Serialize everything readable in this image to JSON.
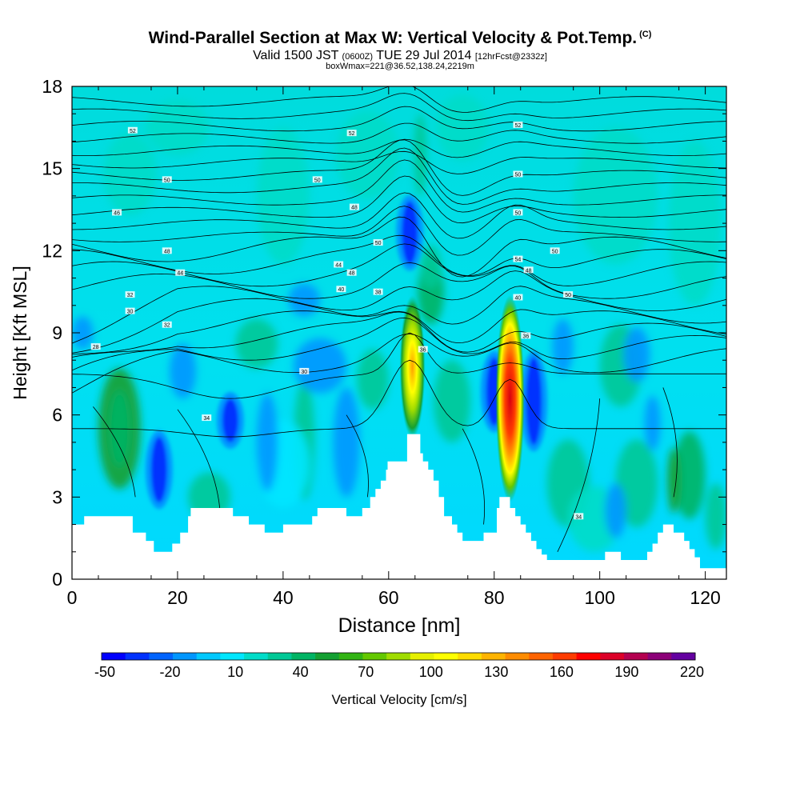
{
  "header": {
    "title": "Wind-Parallel Section at Max W: Vertical Velocity & Pot.Temp.",
    "copyright": "(C)",
    "valid_prefix": "Valid 1500 JST",
    "valid_zulu": "(0600Z)",
    "valid_date": "TUE 29 Jul 2014",
    "forecast_info": "[12hrFcst@2332z]",
    "box_wmax": "boxWmax=221@36.52,138.24,2219m"
  },
  "chart_data": {
    "type": "heatmap",
    "xlabel": "Distance [nm]",
    "ylabel": "Height [Kft MSL]",
    "xlim": [
      0,
      124
    ],
    "ylim": [
      0,
      18
    ],
    "x_ticks": [
      0,
      20,
      40,
      60,
      80,
      100,
      120
    ],
    "y_ticks": [
      0,
      3,
      6,
      9,
      12,
      15,
      18
    ],
    "colorbar": {
      "label": "Vertical Velocity [cm/s]",
      "tick_labels": [
        "-50",
        "-20",
        "10",
        "40",
        "70",
        "100",
        "130",
        "160",
        "190",
        "220"
      ],
      "colors": [
        "#0000ff",
        "#0032ff",
        "#0064ff",
        "#0096ff",
        "#00c8ff",
        "#00e6ff",
        "#00dcc8",
        "#00c896",
        "#00b464",
        "#14a032",
        "#32b414",
        "#64c800",
        "#a0dc00",
        "#e6f000",
        "#ffff00",
        "#ffdc00",
        "#ffb400",
        "#ff8c00",
        "#ff6400",
        "#ff3c00",
        "#ff0000",
        "#dc0028",
        "#b40050",
        "#8c0078",
        "#6400a0"
      ]
    },
    "max_updraft_cm_s": 221,
    "updraft_cores": [
      {
        "x": 64.5,
        "base_kft": 5.3,
        "top_kft": 10.2,
        "peak_cm_s": 100
      },
      {
        "x": 83,
        "base_kft": 3.0,
        "top_kft": 10.2,
        "peak_cm_s": 221
      }
    ],
    "downdraft_cores": [
      {
        "x": 16.5,
        "bottom_kft": 2.8,
        "top_kft": 5.2,
        "min_cm_s": -50
      },
      {
        "x": 30,
        "bottom_kft": 5.0,
        "top_kft": 6.6,
        "min_cm_s": -50
      },
      {
        "x": 80,
        "bottom_kft": 5.6,
        "top_kft": 8.1,
        "min_cm_s": -50
      },
      {
        "x": 87.5,
        "bottom_kft": 4.9,
        "top_kft": 8.1,
        "min_cm_s": -50
      },
      {
        "x": 64,
        "bottom_kft": 11.5,
        "top_kft": 13.8,
        "min_cm_s": -50
      }
    ],
    "terrain_kft": [
      [
        0,
        2.0
      ],
      [
        2.3,
        2.0
      ],
      [
        2.3,
        2.3
      ],
      [
        11.5,
        2.3
      ],
      [
        11.5,
        1.7
      ],
      [
        14,
        1.7
      ],
      [
        14,
        1.4
      ],
      [
        15.5,
        1.4
      ],
      [
        15.5,
        1.0
      ],
      [
        19,
        1.0
      ],
      [
        19,
        1.3
      ],
      [
        20.5,
        1.3
      ],
      [
        20.5,
        1.7
      ],
      [
        22,
        1.7
      ],
      [
        22,
        2.3
      ],
      [
        22.5,
        2.3
      ],
      [
        22.5,
        2.6
      ],
      [
        30.5,
        2.6
      ],
      [
        30.5,
        2.3
      ],
      [
        33.5,
        2.3
      ],
      [
        33.5,
        2.0
      ],
      [
        36.5,
        2.0
      ],
      [
        36.5,
        1.7
      ],
      [
        40,
        1.7
      ],
      [
        40,
        2.0
      ],
      [
        45.5,
        2.0
      ],
      [
        45.5,
        2.3
      ],
      [
        46.5,
        2.3
      ],
      [
        46.5,
        2.6
      ],
      [
        52,
        2.6
      ],
      [
        52,
        2.3
      ],
      [
        55,
        2.3
      ],
      [
        55,
        2.6
      ],
      [
        56.5,
        2.6
      ],
      [
        56.5,
        3.0
      ],
      [
        57.5,
        3.0
      ],
      [
        57.5,
        3.3
      ],
      [
        58.5,
        3.3
      ],
      [
        58.5,
        3.6
      ],
      [
        59.5,
        3.6
      ],
      [
        59.5,
        4.0
      ],
      [
        59.8,
        4.0
      ],
      [
        59.8,
        4.3
      ],
      [
        63.5,
        4.3
      ],
      [
        63.5,
        5.3
      ],
      [
        66,
        5.3
      ],
      [
        66,
        4.6
      ],
      [
        66.5,
        4.6
      ],
      [
        66.5,
        4.3
      ],
      [
        67.5,
        4.3
      ],
      [
        67.5,
        4.0
      ],
      [
        68.5,
        4.0
      ],
      [
        68.5,
        3.6
      ],
      [
        69.5,
        3.6
      ],
      [
        69.5,
        3.0
      ],
      [
        70.5,
        3.0
      ],
      [
        70.5,
        2.3
      ],
      [
        72,
        2.3
      ],
      [
        72,
        2.0
      ],
      [
        73,
        2.0
      ],
      [
        73,
        1.7
      ],
      [
        74,
        1.7
      ],
      [
        74,
        1.4
      ],
      [
        78,
        1.4
      ],
      [
        78,
        1.7
      ],
      [
        80.5,
        1.7
      ],
      [
        80.5,
        2.6
      ],
      [
        81,
        2.6
      ],
      [
        81,
        3.0
      ],
      [
        83,
        3.0
      ],
      [
        83,
        2.6
      ],
      [
        84,
        2.6
      ],
      [
        84,
        2.3
      ],
      [
        85,
        2.3
      ],
      [
        85,
        2.0
      ],
      [
        86,
        2.0
      ],
      [
        86,
        1.7
      ],
      [
        87,
        1.7
      ],
      [
        87,
        1.4
      ],
      [
        88,
        1.4
      ],
      [
        88,
        1.1
      ],
      [
        89,
        1.1
      ],
      [
        89,
        0.9
      ],
      [
        90,
        0.9
      ],
      [
        90,
        0.7
      ],
      [
        101,
        0.7
      ],
      [
        101,
        1.0
      ],
      [
        104,
        1.0
      ],
      [
        104,
        0.7
      ],
      [
        109,
        0.7
      ],
      [
        109,
        1.0
      ],
      [
        110,
        1.0
      ],
      [
        110,
        1.3
      ],
      [
        111,
        1.3
      ],
      [
        111,
        1.7
      ],
      [
        112,
        1.7
      ],
      [
        112,
        2.0
      ],
      [
        114,
        2.0
      ],
      [
        114,
        1.7
      ],
      [
        116,
        1.7
      ],
      [
        116,
        1.4
      ],
      [
        117,
        1.4
      ],
      [
        117,
        1.1
      ],
      [
        118,
        1.1
      ],
      [
        118,
        0.8
      ],
      [
        119,
        0.8
      ],
      [
        119,
        0.4
      ],
      [
        124,
        0.4
      ]
    ],
    "theta_contour_labels": [
      {
        "x": 4.5,
        "y": 8.5,
        "text": "28"
      },
      {
        "x": 11,
        "y": 9.8,
        "text": "30"
      },
      {
        "x": 11,
        "y": 10.4,
        "text": "32"
      },
      {
        "x": 18,
        "y": 9.3,
        "text": "32"
      },
      {
        "x": 20.5,
        "y": 11.2,
        "text": "44"
      },
      {
        "x": 18,
        "y": 12.0,
        "text": "48"
      },
      {
        "x": 8.5,
        "y": 13.4,
        "text": "46"
      },
      {
        "x": 18,
        "y": 14.6,
        "text": "50"
      },
      {
        "x": 11.5,
        "y": 16.4,
        "text": "52"
      },
      {
        "x": 44,
        "y": 7.6,
        "text": "30"
      },
      {
        "x": 25.5,
        "y": 5.9,
        "text": "34"
      },
      {
        "x": 51,
        "y": 10.6,
        "text": "40"
      },
      {
        "x": 50.5,
        "y": 11.5,
        "text": "44"
      },
      {
        "x": 53,
        "y": 11.2,
        "text": "48"
      },
      {
        "x": 58,
        "y": 10.5,
        "text": "38"
      },
      {
        "x": 58,
        "y": 12.3,
        "text": "50"
      },
      {
        "x": 53.5,
        "y": 13.6,
        "text": "48"
      },
      {
        "x": 46.5,
        "y": 14.6,
        "text": "50"
      },
      {
        "x": 53,
        "y": 16.3,
        "text": "52"
      },
      {
        "x": 66.5,
        "y": 8.4,
        "text": "36"
      },
      {
        "x": 84.5,
        "y": 10.3,
        "text": "40"
      },
      {
        "x": 86,
        "y": 8.9,
        "text": "36"
      },
      {
        "x": 86.5,
        "y": 11.3,
        "text": "48"
      },
      {
        "x": 84.5,
        "y": 11.7,
        "text": "54"
      },
      {
        "x": 84.5,
        "y": 13.4,
        "text": "50"
      },
      {
        "x": 91.5,
        "y": 12.0,
        "text": "50"
      },
      {
        "x": 94,
        "y": 10.4,
        "text": "50"
      },
      {
        "x": 84.5,
        "y": 14.8,
        "text": "50"
      },
      {
        "x": 84.5,
        "y": 16.6,
        "text": "52"
      },
      {
        "x": 96,
        "y": 2.3,
        "text": "34"
      }
    ]
  }
}
